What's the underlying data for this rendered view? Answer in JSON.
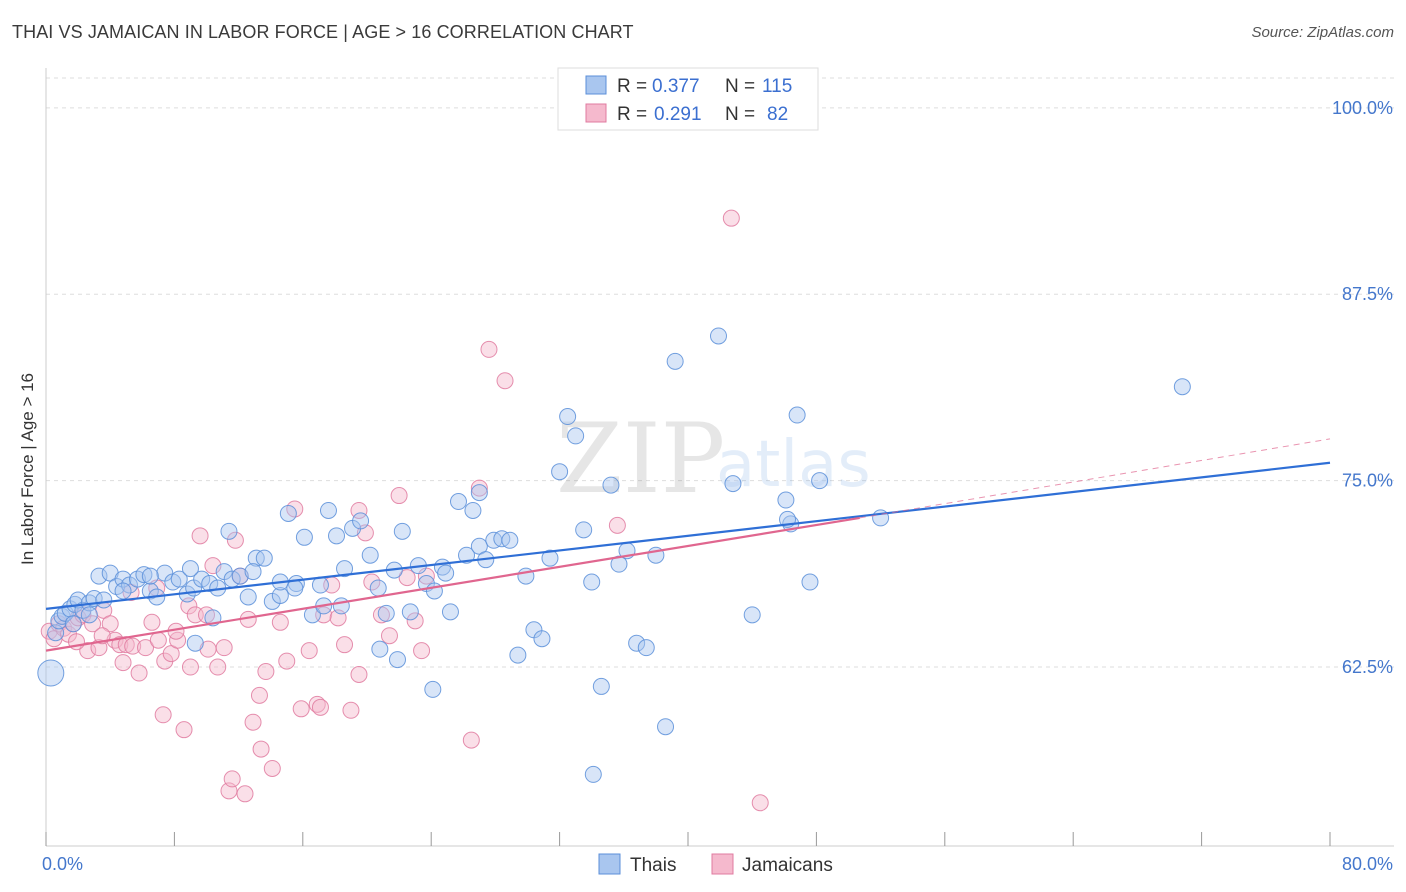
{
  "title": "THAI VS JAMAICAN IN LABOR FORCE | AGE > 16 CORRELATION CHART",
  "source": "Source: ZipAtlas.com",
  "watermark": {
    "zip": "ZIP",
    "atlas": "atlas"
  },
  "colors": {
    "thais": "#5b8fd9",
    "thais_fill": "#a9c6ef",
    "jamaicans": "#e07ba0",
    "jamaicans_fill": "#f5b9cd",
    "tick_label": "#4477cc",
    "grid": "#dddddd"
  },
  "legend_top": [
    {
      "series": "Thais",
      "r_label": "R =",
      "r_value": "0.377",
      "n_label": "N =",
      "n_value": "115"
    },
    {
      "series": "Jamaicans",
      "r_label": "R =",
      "r_value": "0.291",
      "n_label": "N =",
      "n_value": "82"
    }
  ],
  "chart_data": {
    "type": "scatter",
    "title": "THAI VS JAMAICAN IN LABOR FORCE | AGE > 16 CORRELATION CHART",
    "xlabel": "",
    "ylabel": "In Labor Force | Age > 16",
    "xlim": [
      0,
      80
    ],
    "ylim": [
      50.5,
      102
    ],
    "x_tick_labels": [
      {
        "value": 0,
        "label": "0.0%"
      },
      {
        "value": 80,
        "label": "80.0%"
      }
    ],
    "y_tick_labels": [
      {
        "value": 62.5,
        "label": "62.5%"
      },
      {
        "value": 75.0,
        "label": "75.0%"
      },
      {
        "value": 87.5,
        "label": "87.5%"
      },
      {
        "value": 100.0,
        "label": "100.0%"
      }
    ],
    "x_minor_ticks": [
      0,
      8,
      16,
      24,
      32,
      40,
      48,
      56,
      64,
      72,
      80
    ],
    "legend": [
      "Thais",
      "Jamaicans"
    ],
    "series": [
      {
        "name": "Thais",
        "r": 0.377,
        "n": 115,
        "trend": {
          "x": [
            0,
            80
          ],
          "y": [
            66.4,
            76.2
          ],
          "dashed_to": null
        },
        "points": [
          [
            0.3,
            62.1
          ],
          [
            0.6,
            64.8
          ],
          [
            0.8,
            65.6
          ],
          [
            1.0,
            65.9
          ],
          [
            1.2,
            66.1
          ],
          [
            1.5,
            66.4
          ],
          [
            1.8,
            66.7
          ],
          [
            2.0,
            67.0
          ],
          [
            2.3,
            66.3
          ],
          [
            2.7,
            66.8
          ],
          [
            3.0,
            67.1
          ],
          [
            3.3,
            68.6
          ],
          [
            3.6,
            67.0
          ],
          [
            4.0,
            68.8
          ],
          [
            4.4,
            67.9
          ],
          [
            4.8,
            68.4
          ],
          [
            5.2,
            68.0
          ],
          [
            5.7,
            68.4
          ],
          [
            6.1,
            68.7
          ],
          [
            6.5,
            67.6
          ],
          [
            6.9,
            67.2
          ],
          [
            7.4,
            68.8
          ],
          [
            7.9,
            68.2
          ],
          [
            8.3,
            68.4
          ],
          [
            8.8,
            67.4
          ],
          [
            9.2,
            67.8
          ],
          [
            9.7,
            68.4
          ],
          [
            10.2,
            68.1
          ],
          [
            10.7,
            67.8
          ],
          [
            11.1,
            68.9
          ],
          [
            11.6,
            68.4
          ],
          [
            12.1,
            68.6
          ],
          [
            12.6,
            67.2
          ],
          [
            13.1,
            69.8
          ],
          [
            13.6,
            69.8
          ],
          [
            14.1,
            66.9
          ],
          [
            14.6,
            67.3
          ],
          [
            15.1,
            72.8
          ],
          [
            15.6,
            68.1
          ],
          [
            16.1,
            71.2
          ],
          [
            16.6,
            66.0
          ],
          [
            17.1,
            68.0
          ],
          [
            17.6,
            73.0
          ],
          [
            18.1,
            71.3
          ],
          [
            18.6,
            69.1
          ],
          [
            19.1,
            71.8
          ],
          [
            19.6,
            72.3
          ],
          [
            20.2,
            70.0
          ],
          [
            20.7,
            67.8
          ],
          [
            21.2,
            66.1
          ],
          [
            21.7,
            69.0
          ],
          [
            22.2,
            71.6
          ],
          [
            22.7,
            66.2
          ],
          [
            23.2,
            69.3
          ],
          [
            23.7,
            68.1
          ],
          [
            24.2,
            67.6
          ],
          [
            24.7,
            69.2
          ],
          [
            25.2,
            66.2
          ],
          [
            25.7,
            73.6
          ],
          [
            26.2,
            70.0
          ],
          [
            26.6,
            73.0
          ],
          [
            27.0,
            70.6
          ],
          [
            27.4,
            69.7
          ],
          [
            27.9,
            71.0
          ],
          [
            28.4,
            71.1
          ],
          [
            28.9,
            71.0
          ],
          [
            29.4,
            63.3
          ],
          [
            29.9,
            68.6
          ],
          [
            30.4,
            65.0
          ],
          [
            30.9,
            64.4
          ],
          [
            31.4,
            69.8
          ],
          [
            32.0,
            75.6
          ],
          [
            32.5,
            79.3
          ],
          [
            33.0,
            78.0
          ],
          [
            33.5,
            71.7
          ],
          [
            34.0,
            68.2
          ],
          [
            34.6,
            61.2
          ],
          [
            35.2,
            74.7
          ],
          [
            35.7,
            69.4
          ],
          [
            36.2,
            70.3
          ],
          [
            36.8,
            64.1
          ],
          [
            37.4,
            63.8
          ],
          [
            38.0,
            70.0
          ],
          [
            38.6,
            58.5
          ],
          [
            39.2,
            83.0
          ],
          [
            41.9,
            84.7
          ],
          [
            42.8,
            74.8
          ],
          [
            44.0,
            66.0
          ],
          [
            46.1,
            73.7
          ],
          [
            46.8,
            79.4
          ],
          [
            47.6,
            68.2
          ],
          [
            48.2,
            75.0
          ],
          [
            52.0,
            72.5
          ],
          [
            70.8,
            81.3
          ],
          [
            11.4,
            71.6
          ],
          [
            14.6,
            68.2
          ],
          [
            9.3,
            64.1
          ],
          [
            10.4,
            65.8
          ],
          [
            4.8,
            67.6
          ],
          [
            2.7,
            66.0
          ],
          [
            34.1,
            55.3
          ],
          [
            46.4,
            72.1
          ],
          [
            46.2,
            72.4
          ],
          [
            21.9,
            63.0
          ],
          [
            9.0,
            69.1
          ],
          [
            12.9,
            68.9
          ],
          [
            24.1,
            61.0
          ],
          [
            24.9,
            68.8
          ],
          [
            27.0,
            74.2
          ],
          [
            20.8,
            63.7
          ],
          [
            6.5,
            68.6
          ],
          [
            15.5,
            67.8
          ],
          [
            17.3,
            66.6
          ],
          [
            18.4,
            66.6
          ],
          [
            1.7,
            65.4
          ]
        ]
      },
      {
        "name": "Jamaicans",
        "r": 0.291,
        "n": 82,
        "trend": {
          "x": [
            0,
            50.7
          ],
          "y": [
            63.6,
            72.5
          ],
          "dashed_to": [
            80,
            77.8
          ]
        },
        "points": [
          [
            0.2,
            64.9
          ],
          [
            0.5,
            64.4
          ],
          [
            0.8,
            65.4
          ],
          [
            1.1,
            65.1
          ],
          [
            1.4,
            64.7
          ],
          [
            1.7,
            65.4
          ],
          [
            2.0,
            65.8
          ],
          [
            2.3,
            66.0
          ],
          [
            2.6,
            63.6
          ],
          [
            2.9,
            65.4
          ],
          [
            3.3,
            63.8
          ],
          [
            3.6,
            66.3
          ],
          [
            4.0,
            65.4
          ],
          [
            4.3,
            64.3
          ],
          [
            4.6,
            64.0
          ],
          [
            5.0,
            64.0
          ],
          [
            5.4,
            63.9
          ],
          [
            5.8,
            62.1
          ],
          [
            6.2,
            63.8
          ],
          [
            6.6,
            65.5
          ],
          [
            7.0,
            64.3
          ],
          [
            7.4,
            62.9
          ],
          [
            7.8,
            63.4
          ],
          [
            8.2,
            64.3
          ],
          [
            8.6,
            58.3
          ],
          [
            8.9,
            66.6
          ],
          [
            9.3,
            66.0
          ],
          [
            9.6,
            71.3
          ],
          [
            10.0,
            66.0
          ],
          [
            10.4,
            69.3
          ],
          [
            10.7,
            62.5
          ],
          [
            11.1,
            63.8
          ],
          [
            11.4,
            54.2
          ],
          [
            11.8,
            71.0
          ],
          [
            12.1,
            68.6
          ],
          [
            12.6,
            65.7
          ],
          [
            12.9,
            58.8
          ],
          [
            13.3,
            60.6
          ],
          [
            13.7,
            62.2
          ],
          [
            14.1,
            55.7
          ],
          [
            14.6,
            65.5
          ],
          [
            15.0,
            62.9
          ],
          [
            15.5,
            73.1
          ],
          [
            15.9,
            59.7
          ],
          [
            16.4,
            63.6
          ],
          [
            16.9,
            60.0
          ],
          [
            17.3,
            66.0
          ],
          [
            17.8,
            68.0
          ],
          [
            18.2,
            65.8
          ],
          [
            18.6,
            64.0
          ],
          [
            19.0,
            59.6
          ],
          [
            19.5,
            62.0
          ],
          [
            19.9,
            71.5
          ],
          [
            20.3,
            68.2
          ],
          [
            20.9,
            66.0
          ],
          [
            21.4,
            64.6
          ],
          [
            22.0,
            74.0
          ],
          [
            22.5,
            68.5
          ],
          [
            23.0,
            65.6
          ],
          [
            23.7,
            68.6
          ],
          [
            26.5,
            57.6
          ],
          [
            27.0,
            74.5
          ],
          [
            27.6,
            83.8
          ],
          [
            28.6,
            81.7
          ],
          [
            35.6,
            72.0
          ],
          [
            42.7,
            92.6
          ],
          [
            44.5,
            53.4
          ],
          [
            11.6,
            55.0
          ],
          [
            7.3,
            59.3
          ],
          [
            3.5,
            64.6
          ],
          [
            1.9,
            64.2
          ],
          [
            9.0,
            62.5
          ],
          [
            12.4,
            54.0
          ],
          [
            13.4,
            57.0
          ],
          [
            5.3,
            67.5
          ],
          [
            6.9,
            67.8
          ],
          [
            10.1,
            63.7
          ],
          [
            17.1,
            59.8
          ],
          [
            19.5,
            73.0
          ],
          [
            23.4,
            63.6
          ],
          [
            4.8,
            62.8
          ],
          [
            8.1,
            64.9
          ]
        ]
      }
    ]
  }
}
